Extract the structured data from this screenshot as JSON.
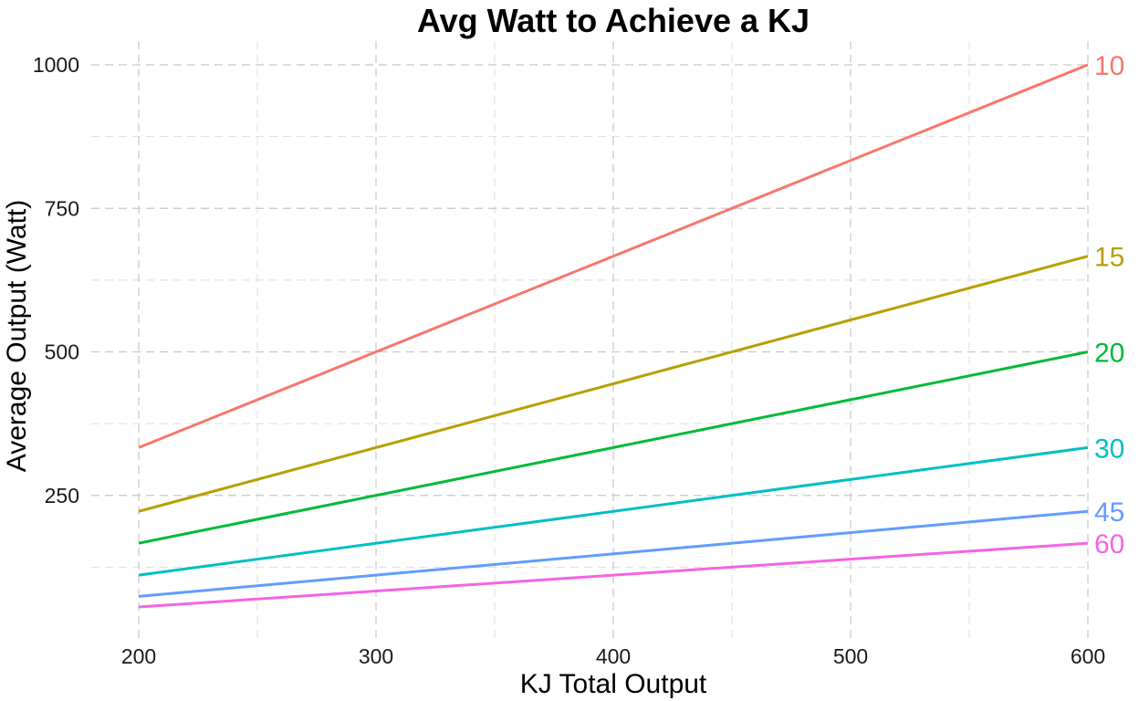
{
  "chart_data": {
    "type": "line",
    "title": "Avg Watt to Achieve a KJ",
    "xlabel": "KJ Total Output",
    "ylabel": "Average Output (Watt)",
    "xlim": [
      180,
      620
    ],
    "ylim": [
      0,
      1050
    ],
    "x_ticks": [
      200,
      300,
      400,
      500,
      600
    ],
    "x_minor_ticks": [
      250,
      350,
      450,
      550
    ],
    "y_ticks": [
      250,
      500,
      750,
      1000
    ],
    "y_minor_ticks": [
      125,
      375,
      625,
      875
    ],
    "grid": true,
    "legend": "none (series labels at right end of lines)",
    "series": [
      {
        "name": "10",
        "color": "#F8766D",
        "x": [
          200,
          600
        ],
        "y": [
          333.3,
          1000
        ]
      },
      {
        "name": "15",
        "color": "#B79F00",
        "x": [
          200,
          600
        ],
        "y": [
          222.2,
          666.7
        ]
      },
      {
        "name": "20",
        "color": "#00BA38",
        "x": [
          200,
          600
        ],
        "y": [
          166.7,
          500
        ]
      },
      {
        "name": "30",
        "color": "#00BFC4",
        "x": [
          200,
          600
        ],
        "y": [
          111.1,
          333.3
        ]
      },
      {
        "name": "45",
        "color": "#619CFF",
        "x": [
          200,
          600
        ],
        "y": [
          74.1,
          222.2
        ]
      },
      {
        "name": "60",
        "color": "#F564E3",
        "x": [
          200,
          600
        ],
        "y": [
          55.6,
          166.7
        ]
      }
    ]
  }
}
